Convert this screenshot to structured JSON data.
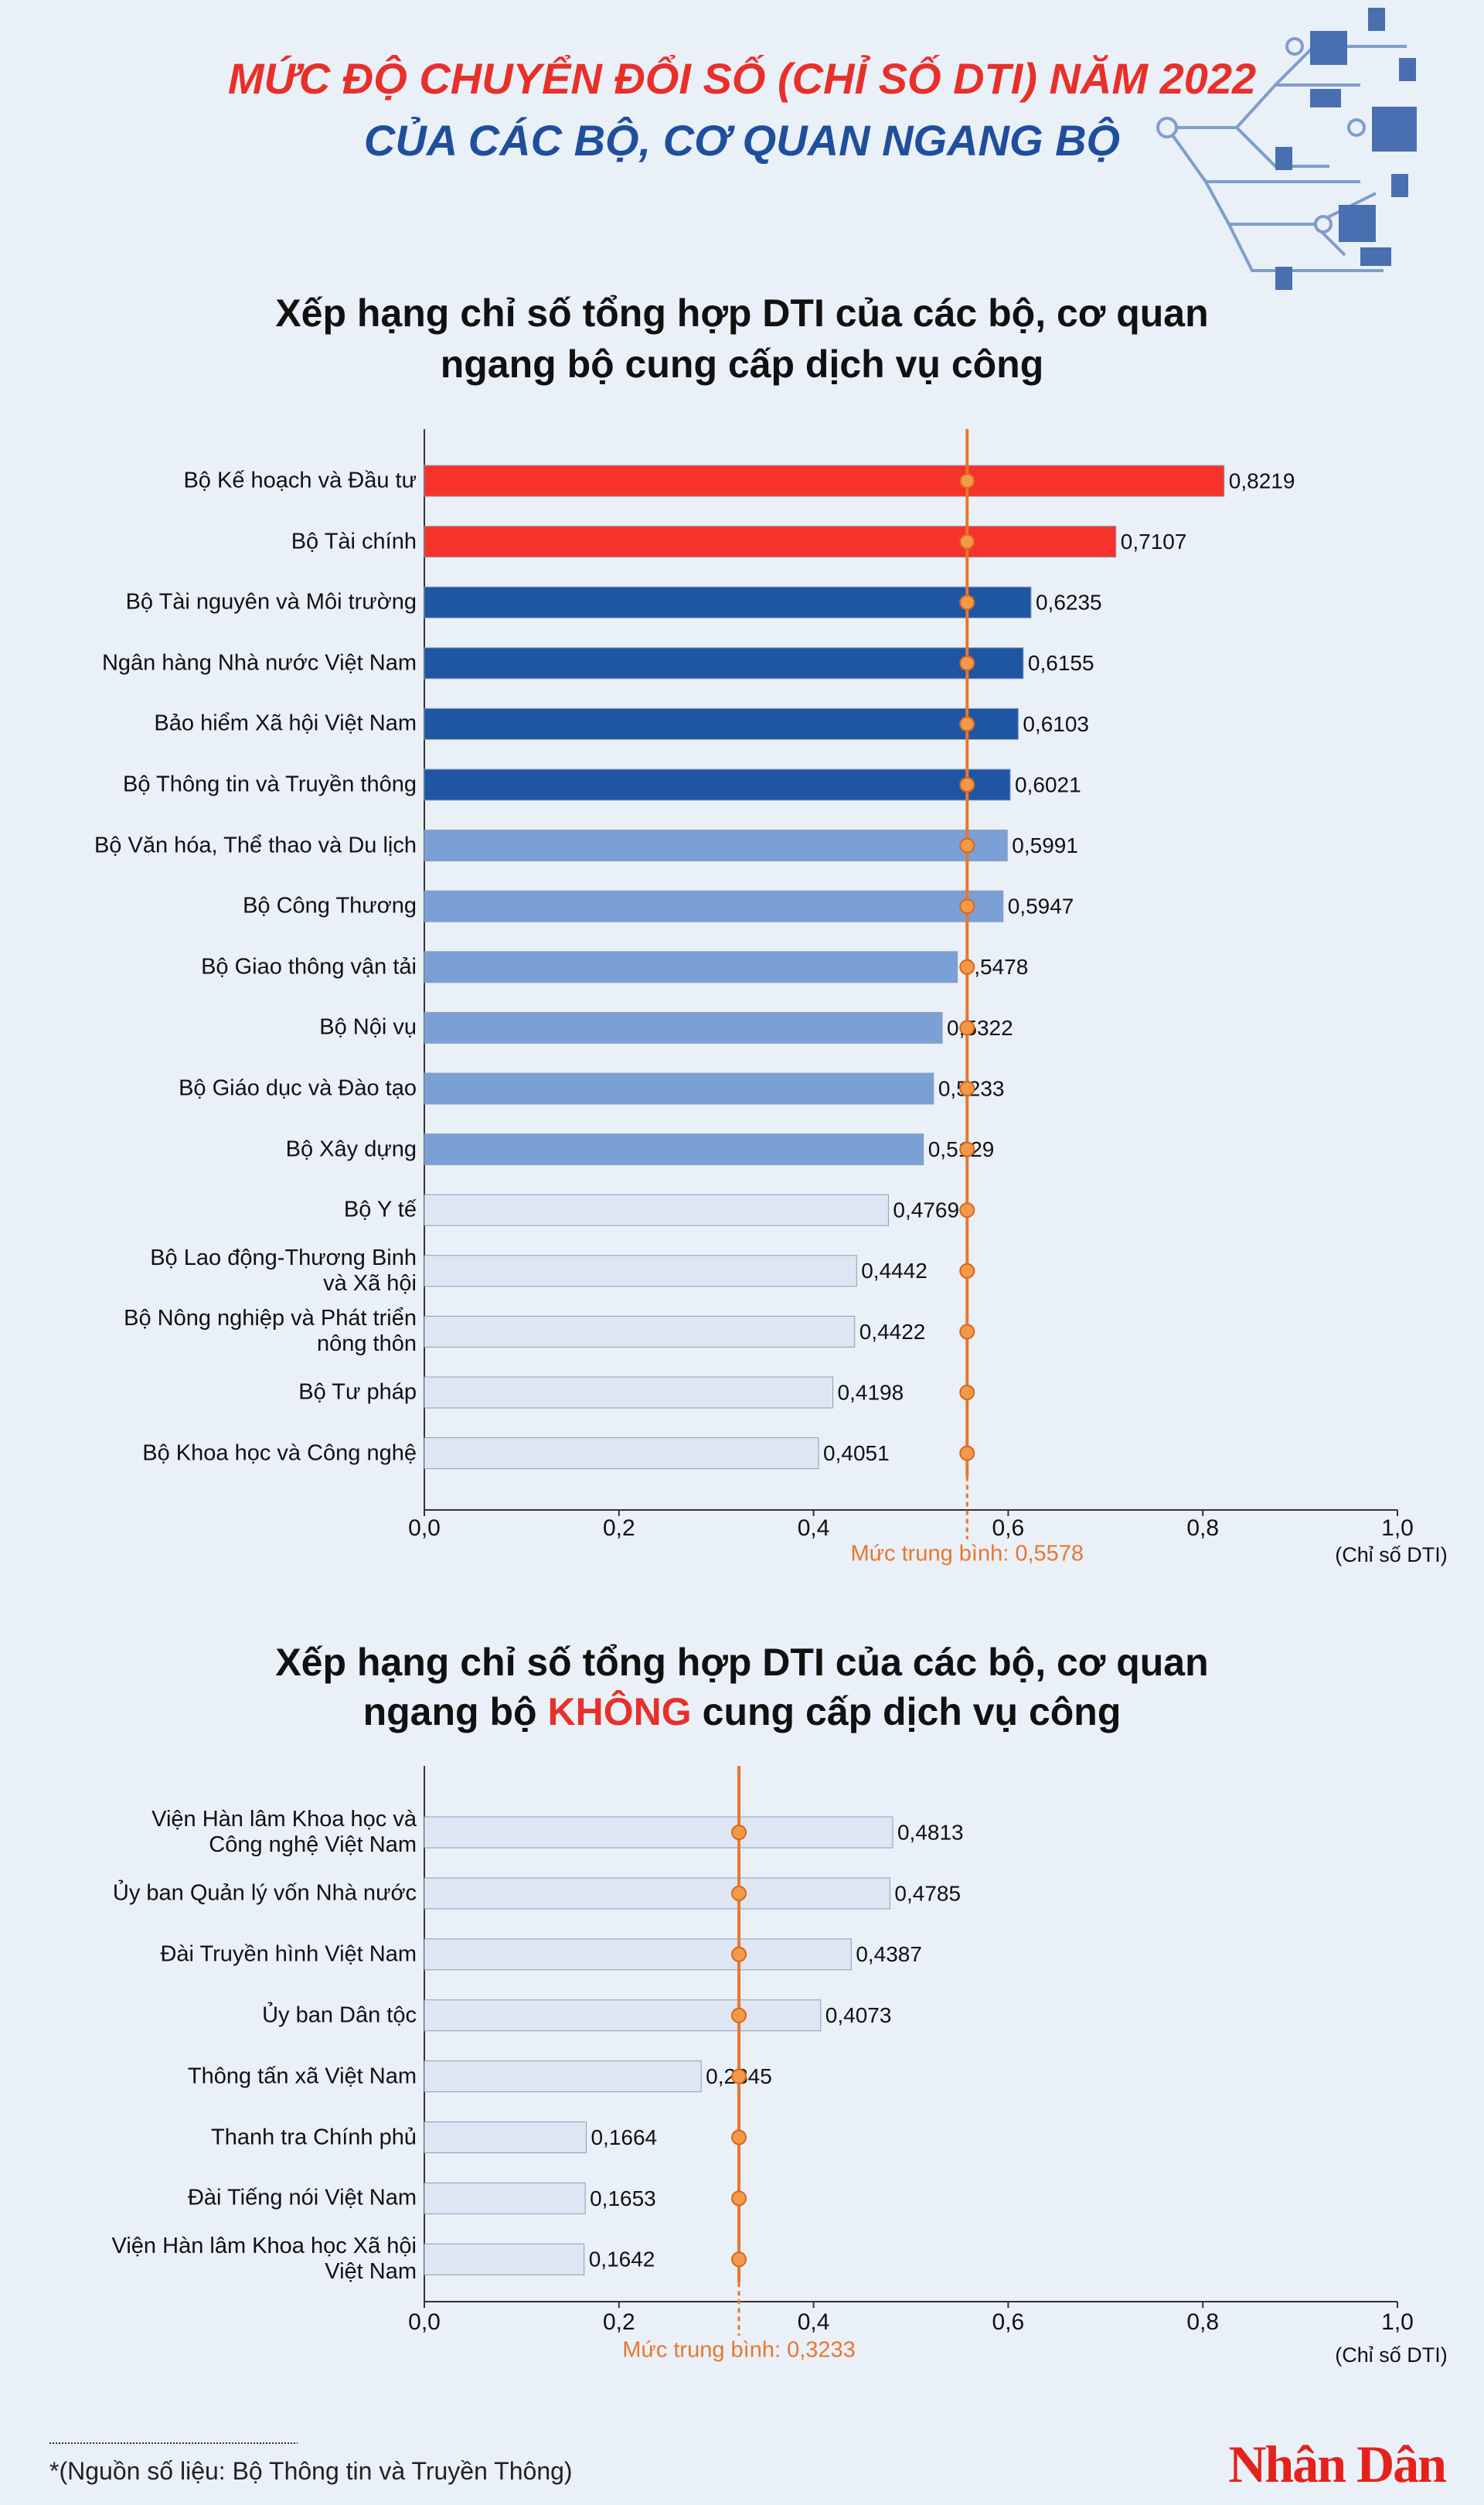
{
  "header": {
    "title": [
      "MỨC ĐỘ CHUYỂN ĐỔI SỐ (CHỈ SỐ DTI) NĂM 2022",
      "CỦA CÁC BỘ, CƠ QUAN NGANG BỘ"
    ]
  },
  "chart_data": [
    {
      "type": "bar",
      "orientation": "horizontal",
      "title": [
        "Xếp hạng chỉ số tổng hợp DTI của các bộ, cơ quan",
        "ngang bộ cung cấp dịch vụ công"
      ],
      "categories": [
        "Bộ Kế hoạch và Đầu tư",
        "Bộ Tài chính",
        "Bộ Tài nguyên và Môi trường",
        "Ngân hàng Nhà nước Việt Nam",
        "Bảo hiểm Xã hội Việt Nam",
        "Bộ Thông tin và Truyền thông",
        "Bộ Văn hóa, Thể thao và Du lịch",
        "Bộ Công Thương",
        "Bộ Giao thông vận tải",
        "Bộ Nội vụ",
        "Bộ Giáo dục và Đào tạo",
        "Bộ Xây dựng",
        "Bộ Y tế",
        "Bộ Lao động-Thương Binh\nvà Xã hội",
        "Bộ Nông nghiệp và Phát triển\nnông thôn",
        "Bộ Tư pháp",
        "Bộ Khoa học và Công nghệ"
      ],
      "values": [
        0.8219,
        0.7107,
        0.6235,
        0.6155,
        0.6103,
        0.6021,
        0.5991,
        0.5947,
        0.5478,
        0.5322,
        0.5233,
        0.5129,
        0.4769,
        0.4442,
        0.4422,
        0.4198,
        0.4051
      ],
      "value_labels": [
        "0,8219",
        "0,7107",
        "0,6235",
        "0,6155",
        "0,6103",
        "0,6021",
        "0,5991",
        "0,5947",
        "0,5478",
        "0,5322",
        "0,5233",
        "0,5129",
        "0,4769",
        "0,4442",
        "0,4422",
        "0,4198",
        "0,4051"
      ],
      "colors": [
        "#f5332a",
        "#f5332a",
        "#1f56a4",
        "#1f56a4",
        "#1f56a4",
        "#1f56a4",
        "#7ba0d6",
        "#7ba0d6",
        "#7ba0d6",
        "#7ba0d6",
        "#7ba0d6",
        "#7ba0d6",
        "#dfe6f3",
        "#dfe6f3",
        "#dfe6f3",
        "#dfe6f3",
        "#dfe6f3"
      ],
      "xlim": [
        0,
        1
      ],
      "xticks": [
        {
          "value": 0,
          "label": "0,0"
        },
        {
          "value": 0.2,
          "label": "0,2"
        },
        {
          "value": 0.4,
          "label": "0,4"
        },
        {
          "value": 0.6,
          "label": "0,6"
        },
        {
          "value": 0.8,
          "label": "0,8"
        },
        {
          "value": 1,
          "label": "1,0"
        }
      ],
      "x_label": "(Chỉ số DTI)",
      "average": 0.5578,
      "average_label": "Mức trung bình: 0,5578",
      "average_color": "#e8772e"
    },
    {
      "type": "bar",
      "orientation": "horizontal",
      "title": [
        "Xếp hạng chỉ số tổng hợp DTI của các bộ, cơ quan",
        [
          "ngang bộ",
          "KHÔNG",
          "cung cấp dịch vụ công"
        ]
      ],
      "categories": [
        "Viện Hàn lâm Khoa học và\nCông nghệ Việt Nam",
        "Ủy ban Quản lý vốn Nhà nước",
        "Đài Truyền hình Việt Nam",
        "Ủy ban Dân tộc",
        "Thông tấn xã Việt Nam",
        "Thanh tra Chính phủ",
        "Đài Tiếng nói Việt Nam",
        "Viện Hàn lâm Khoa học Xã hội\nViệt Nam"
      ],
      "values": [
        0.4813,
        0.4785,
        0.4387,
        0.4073,
        0.2845,
        0.1664,
        0.1653,
        0.1642
      ],
      "value_labels": [
        "0,4813",
        "0,4785",
        "0,4387",
        "0,4073",
        "0,2845",
        "0,1664",
        "0,1653",
        "0,1642"
      ],
      "colors": [
        "#dfe6f3",
        "#dfe6f3",
        "#dfe6f3",
        "#dfe6f3",
        "#dfe6f3",
        "#dfe6f3",
        "#dfe6f3",
        "#dfe6f3"
      ],
      "xlim": [
        0,
        1
      ],
      "xticks": [
        {
          "value": 0,
          "label": "0,0"
        },
        {
          "value": 0.2,
          "label": "0,2"
        },
        {
          "value": 0.4,
          "label": "0,4"
        },
        {
          "value": 0.6,
          "label": "0,6"
        },
        {
          "value": 0.8,
          "label": "0,8"
        },
        {
          "value": 1,
          "label": "1,0"
        }
      ],
      "x_label": "(Chỉ số DTI)",
      "average": 0.3233,
      "average_label": "Mức trung bình: 0,3233",
      "average_color": "#e8772e"
    }
  ],
  "source": "*(Nguồn số liệu: Bộ Thông tin và Truyền Thông)",
  "logo": "Nhân Dân"
}
